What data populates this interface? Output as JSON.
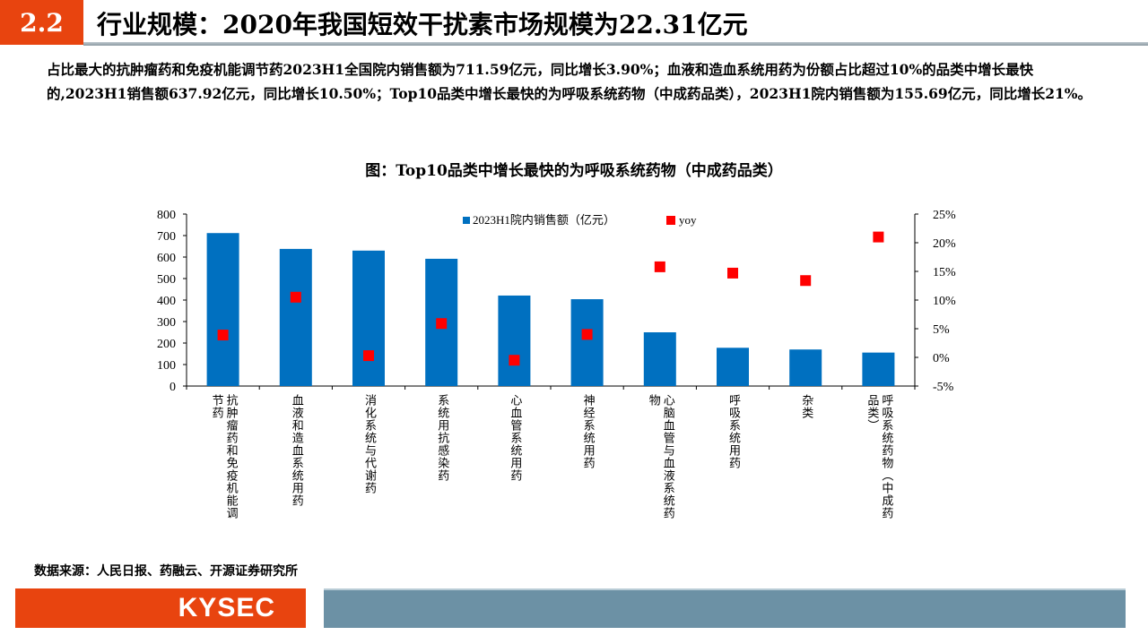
{
  "header": {
    "section_number": "2.2",
    "title": "行业规模：2020年我国短效干扰素市场规模为22.31亿元"
  },
  "paragraph": "占比最大的抗肿瘤药和免疫机能调节药2023H1全国院内销售额为711.59亿元，同比增长3.90%；血液和造血系统用药为份额占比超过10%的品类中增长最快的,2023H1销售额637.92亿元，同比增长10.50%；Top10品类中增长最快的为呼吸系统药物（中成药品类），2023H1院内销售额为155.69亿元，同比增长21%。",
  "chart_title": "图：Top10品类中增长最快的为呼吸系统药物（中成药品类）",
  "source": "数据来源：人民日报、药融云、开源证券研究所",
  "footer": {
    "logo": "KYSEC"
  },
  "colors": {
    "accent": "#E8440F",
    "bar": "#0070C0",
    "point": "#FF0000",
    "footer_bar": "#6C91A5"
  },
  "chart_data": {
    "type": "bar+scatter",
    "categories": [
      "抗肿瘤药和免疫机能调节药",
      "血液和造血系统用药",
      "消化系统与代谢药",
      "系统用抗感染药",
      "心血管系统用药",
      "神经系统用药",
      "心脑血管与血液系统药物",
      "呼吸系统用药",
      "杂类",
      "呼吸系统药物（中成药品类）"
    ],
    "series": [
      {
        "name": "2023H1院内销售额（亿元）",
        "axis": "left",
        "type": "bar",
        "values": [
          711.59,
          637.92,
          630,
          592,
          421,
          404,
          250,
          178,
          170,
          155.69
        ]
      },
      {
        "name": "yoy",
        "axis": "right",
        "type": "scatter",
        "values": [
          3.9,
          10.5,
          0.3,
          5.9,
          -0.5,
          4.0,
          15.8,
          14.7,
          13.4,
          21
        ]
      }
    ],
    "ylim_left": [
      0,
      800
    ],
    "yticks_left": [
      "0",
      "100",
      "200",
      "300",
      "400",
      "500",
      "600",
      "700",
      "800"
    ],
    "ylim_right": [
      -5,
      25
    ],
    "yticks_right": [
      "-5%",
      "0%",
      "5%",
      "10%",
      "15%",
      "20%",
      "25%"
    ],
    "grid": false,
    "legend": "top"
  }
}
